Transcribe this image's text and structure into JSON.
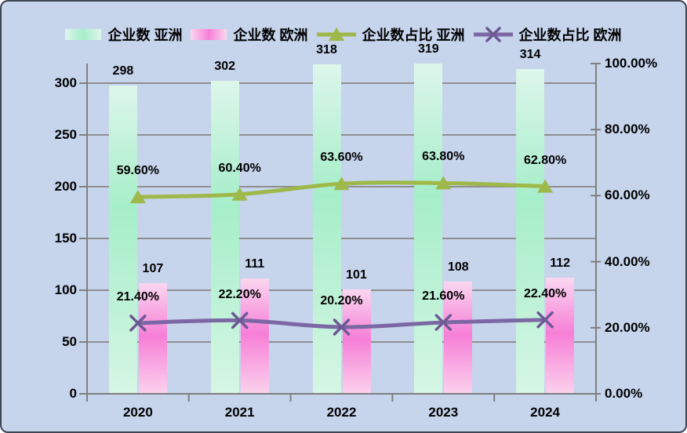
{
  "chart_data": {
    "type": "combo",
    "title": "",
    "categories": [
      "2020",
      "2021",
      "2022",
      "2023",
      "2024"
    ],
    "series": [
      {
        "name": "企业数 亚洲",
        "type": "bar",
        "axis": "left",
        "values": [
          298,
          302,
          318,
          319,
          314
        ],
        "data_labels": [
          "298",
          "302",
          "318",
          "319",
          "314"
        ]
      },
      {
        "name": "企业数 欧洲",
        "type": "bar",
        "axis": "left",
        "values": [
          107,
          111,
          101,
          108,
          112
        ],
        "data_labels": [
          "107",
          "111",
          "101",
          "108",
          "112"
        ]
      },
      {
        "name": "企业数占比 亚洲",
        "type": "line",
        "marker": "triangle",
        "axis": "right",
        "values": [
          59.6,
          60.4,
          63.6,
          63.8,
          62.8
        ],
        "data_labels": [
          "59.60%",
          "60.40%",
          "63.60%",
          "63.80%",
          "62.80%"
        ]
      },
      {
        "name": "企业数占比 欧洲",
        "type": "line",
        "marker": "x",
        "axis": "right",
        "values": [
          21.4,
          22.2,
          20.2,
          21.6,
          22.4
        ],
        "data_labels": [
          "21.40%",
          "22.20%",
          "20.20%",
          "21.60%",
          "22.40%"
        ]
      }
    ],
    "left_axis": {
      "min": 0,
      "max": 300,
      "tick_labels": [
        "0",
        "50",
        "100",
        "150",
        "200",
        "250",
        "300"
      ]
    },
    "right_axis": {
      "min": 0,
      "max": 100,
      "tick_labels": [
        "0.00%",
        "20.00%",
        "40.00%",
        "60.00%",
        "80.00%",
        "100.00%"
      ]
    },
    "grid": true,
    "legend_position": "top"
  },
  "colors": {
    "background": "#c6d4ec",
    "border": "#3d4454",
    "grid": "#8f8f8f",
    "axis": "#7f7f7f",
    "text": "#000000",
    "asia_bar_top": "#ddf6eb",
    "asia_bar_mid": "#a6eec9",
    "asia_bar_bottom": "#d5f6e4",
    "europe_bar_top": "#fad7f0",
    "europe_bar_mid": "#f77fd7",
    "europe_bar_bottom": "#fbd2ed",
    "asia_line": "#9eb84a",
    "europe_line": "#7c67a5",
    "europe_marker": "#6d5894"
  }
}
